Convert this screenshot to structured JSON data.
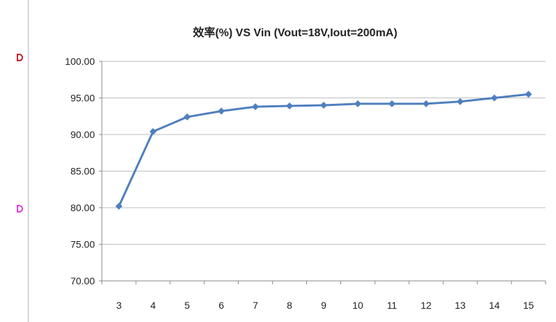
{
  "chart_data": {
    "type": "line",
    "title": "效率(%) VS  Vin (Vout=18V,Iout=200mA)",
    "x": [
      3,
      4,
      5,
      6,
      7,
      8,
      9,
      10,
      11,
      12,
      13,
      14,
      15
    ],
    "series": [
      {
        "values": [
          80.2,
          90.4,
          92.4,
          93.2,
          93.8,
          93.9,
          94.0,
          94.2,
          94.2,
          94.2,
          94.5,
          95.0,
          95.5
        ]
      }
    ],
    "ylim": [
      70,
      100
    ],
    "y_ticks": [
      "100.00",
      "95.00",
      "90.00",
      "85.00",
      "80.00",
      "75.00",
      "70.00"
    ],
    "x_ticks": [
      "3",
      "4",
      "5",
      "6",
      "7",
      "8",
      "9",
      "10",
      "11",
      "12",
      "13",
      "14",
      "15"
    ],
    "grid": true,
    "legend": "none",
    "line_color": "#4f7fbd"
  },
  "markers": {
    "red": "#d21e2b",
    "magenta": "#e040e0"
  }
}
